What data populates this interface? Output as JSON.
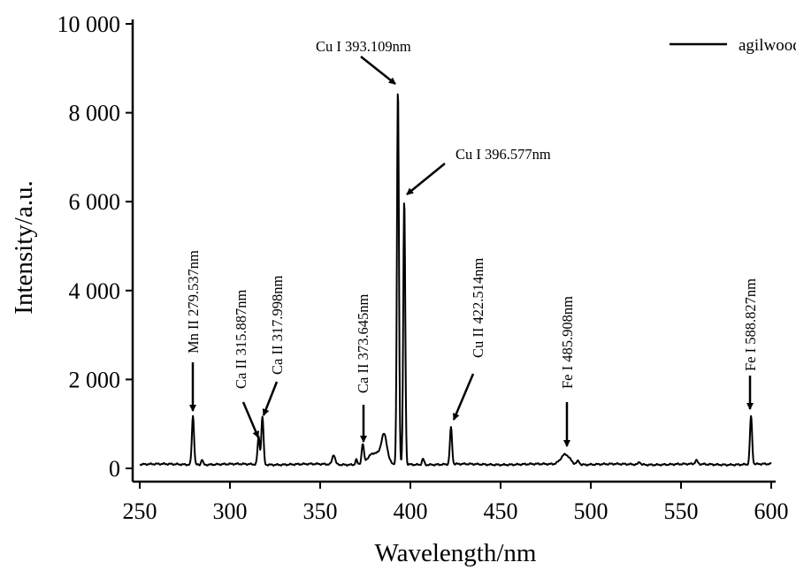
{
  "chart_data": {
    "type": "line",
    "title": "",
    "xlabel": "Wavelength/nm",
    "ylabel": "Intensity/a.u.",
    "xlim": [
      250,
      600
    ],
    "ylim": [
      0,
      10000
    ],
    "xticks": [
      250,
      300,
      350,
      400,
      450,
      500,
      550,
      600
    ],
    "xtick_labels": [
      "250",
      "300",
      "350",
      "400",
      "450",
      "500",
      "550",
      "600"
    ],
    "yticks": [
      0,
      2000,
      4000,
      6000,
      8000,
      10000
    ],
    "ytick_labels": [
      "0",
      "2 000",
      "4 000",
      "6 000",
      "8 000",
      "10 000"
    ],
    "grid": false,
    "legend": {
      "position": "top-right",
      "entries": [
        "agilwood"
      ]
    },
    "series": [
      {
        "name": "agilwood",
        "color": "#000000",
        "baseline": 90,
        "peaks": [
          {
            "x": 279.5,
            "y": 1100,
            "w": 0.6
          },
          {
            "x": 284.5,
            "y": 120,
            "w": 0.5
          },
          {
            "x": 315.9,
            "y": 620,
            "w": 0.6
          },
          {
            "x": 318.0,
            "y": 1080,
            "w": 0.6
          },
          {
            "x": 357.5,
            "y": 220,
            "w": 0.8
          },
          {
            "x": 370.0,
            "y": 110,
            "w": 0.5
          },
          {
            "x": 373.6,
            "y": 420,
            "w": 0.6
          },
          {
            "x": 380.0,
            "y": 250,
            "w": 3.5
          },
          {
            "x": 385.5,
            "y": 600,
            "w": 1.6
          },
          {
            "x": 393.1,
            "y": 8450,
            "w": 0.55
          },
          {
            "x": 396.6,
            "y": 5950,
            "w": 0.55
          },
          {
            "x": 407.0,
            "y": 130,
            "w": 0.6
          },
          {
            "x": 422.5,
            "y": 820,
            "w": 0.6
          },
          {
            "x": 485.9,
            "y": 230,
            "w": 2.5
          },
          {
            "x": 493.0,
            "y": 80,
            "w": 0.8
          },
          {
            "x": 527.0,
            "y": 60,
            "w": 0.6
          },
          {
            "x": 558.5,
            "y": 80,
            "w": 0.7
          },
          {
            "x": 588.8,
            "y": 1080,
            "w": 0.6
          }
        ]
      }
    ],
    "annotations": [
      {
        "text": "Mn II 279.537nm",
        "x": 279.537
      },
      {
        "text": "Ca II 315.887nm",
        "x": 315.887
      },
      {
        "text": "Ca II 317.998nm",
        "x": 317.998
      },
      {
        "text": "Ca II 373.645nm",
        "x": 373.645
      },
      {
        "text": "Cu I 393.109nm",
        "x": 393.109
      },
      {
        "text": "Cu I 396.577nm",
        "x": 396.577
      },
      {
        "text": "Cu II 422.514nm",
        "x": 422.514
      },
      {
        "text": "Fe I 485.908nm",
        "x": 485.908
      },
      {
        "text": "Fe I 588.827nm",
        "x": 588.827
      }
    ]
  }
}
